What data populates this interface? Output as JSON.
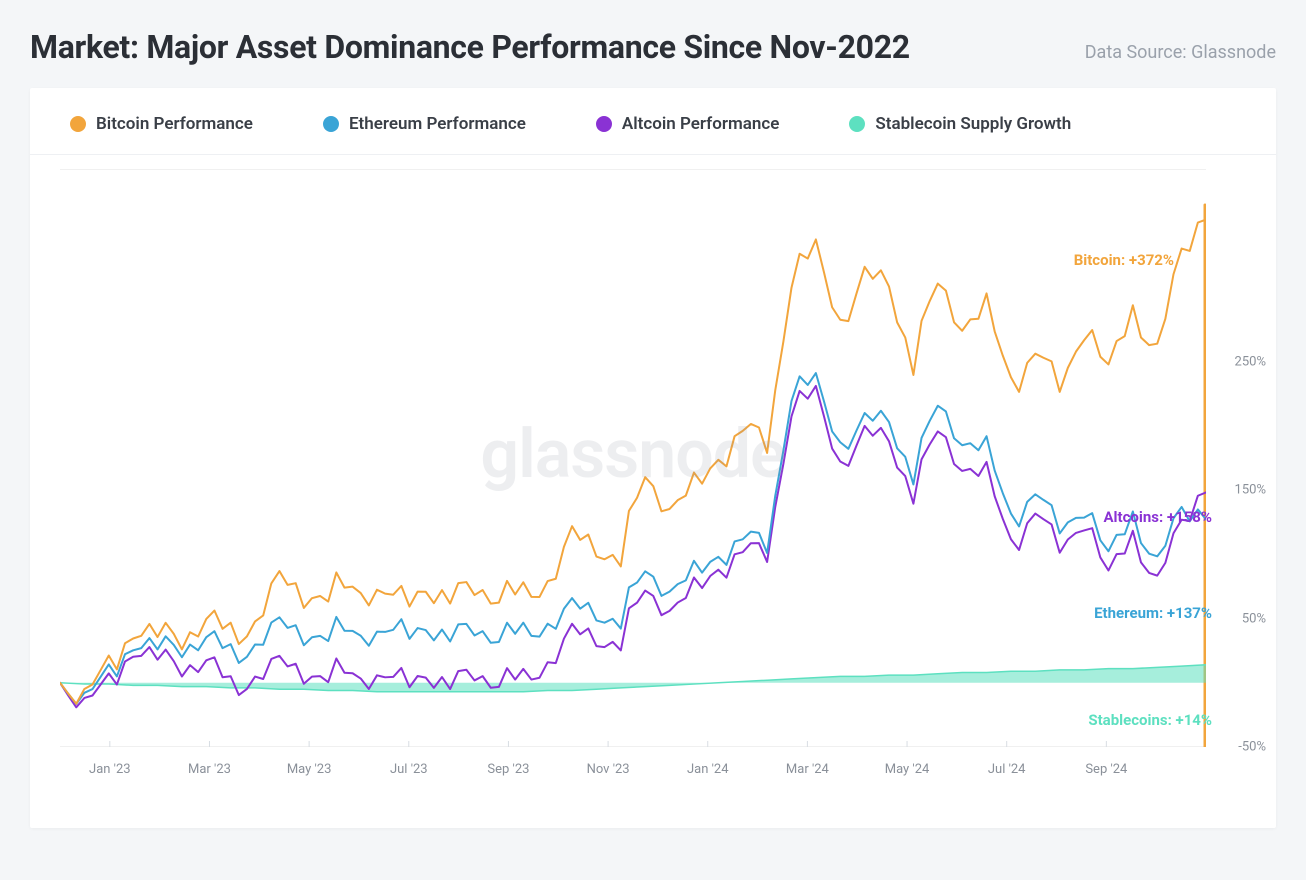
{
  "header": {
    "title": "Market: Major Asset Dominance Performance Since Nov-2022",
    "source": "Data Source: Glassnode"
  },
  "legend": [
    {
      "name": "Bitcoin Performance",
      "color": "#f2a53c"
    },
    {
      "name": "Ethereum Performance",
      "color": "#3aa4d6"
    },
    {
      "name": "Altcoin Performance",
      "color": "#8a32d4"
    },
    {
      "name": "Stablecoin Supply Growth",
      "color": "#5de0c0"
    }
  ],
  "watermark": "glassnode",
  "chart": {
    "type": "line",
    "background_color": "#ffffff",
    "grid_color": "#f0f0f0",
    "tick_label_color": "#8a9099",
    "tick_fontsize": 13,
    "end_label_fontsize": 15,
    "line_width": 2.0,
    "xlim": [
      0,
      23
    ],
    "ylim": [
      -50,
      400
    ],
    "y_ticks": [
      -50,
      50,
      150,
      250
    ],
    "y_tick_labels": [
      "-50%",
      "50%",
      "150%",
      "250%"
    ],
    "x_ticks": [
      1,
      3,
      5,
      7,
      9,
      11,
      13,
      15,
      17,
      19,
      21
    ],
    "x_tick_labels": [
      "Jan '23",
      "Mar '23",
      "May '23",
      "Jul '23",
      "Sep '23",
      "Nov '23",
      "Jan '24",
      "Mar '24",
      "May '24",
      "Jul '24",
      "Sep '24"
    ],
    "end_indicator_color": "#f2a53c",
    "series": {
      "bitcoin": {
        "color": "#f2a53c",
        "end_label": "Bitcoin: +372%",
        "end_label_y": 330,
        "values": [
          0,
          -5,
          8,
          40,
          38,
          32,
          55,
          35,
          48,
          80,
          65,
          72,
          72,
          75,
          62,
          72,
          65,
          72,
          72,
          68,
          78,
          115,
          100,
          102,
          158,
          140,
          152,
          170,
          200,
          180,
          320,
          338,
          280,
          318,
          305,
          252,
          310,
          280,
          295,
          230,
          260,
          225,
          280,
          245,
          290,
          260,
          330,
          372
        ]
      },
      "ethereum": {
        "color": "#3aa4d6",
        "end_label": "Ethereum: +137%",
        "end_label_y": 55,
        "values": [
          0,
          -8,
          3,
          30,
          28,
          25,
          40,
          20,
          30,
          45,
          35,
          40,
          38,
          42,
          38,
          42,
          35,
          40,
          40,
          38,
          45,
          60,
          50,
          52,
          85,
          75,
          85,
          95,
          115,
          102,
          230,
          235,
          185,
          205,
          200,
          165,
          215,
          190,
          185,
          125,
          150,
          115,
          140,
          100,
          130,
          95,
          130,
          137
        ]
      },
      "altcoin": {
        "color": "#8a32d4",
        "end_label": "Altcoins: +158%",
        "end_label_y": 130,
        "values": [
          0,
          -12,
          -4,
          25,
          20,
          10,
          22,
          -5,
          5,
          15,
          5,
          8,
          5,
          8,
          0,
          5,
          -2,
          5,
          5,
          2,
          15,
          40,
          30,
          35,
          70,
          60,
          72,
          85,
          105,
          95,
          218,
          225,
          170,
          195,
          185,
          150,
          195,
          170,
          165,
          105,
          135,
          100,
          130,
          85,
          115,
          80,
          120,
          158
        ]
      },
      "stablecoin": {
        "color": "#5de0c0",
        "type": "area",
        "end_label": "Stablecoins: +14%",
        "end_label_y": -28,
        "values": [
          0,
          -1,
          -1,
          -2,
          -2,
          -3,
          -3,
          -4,
          -4,
          -5,
          -5,
          -6,
          -6,
          -7,
          -7,
          -7,
          -7,
          -7,
          -7,
          -7,
          -6,
          -6,
          -5,
          -4,
          -3,
          -2,
          -1,
          0,
          1,
          2,
          3,
          4,
          5,
          5,
          6,
          6,
          7,
          8,
          8,
          9,
          9,
          10,
          10,
          11,
          11,
          12,
          13,
          14
        ]
      }
    }
  }
}
